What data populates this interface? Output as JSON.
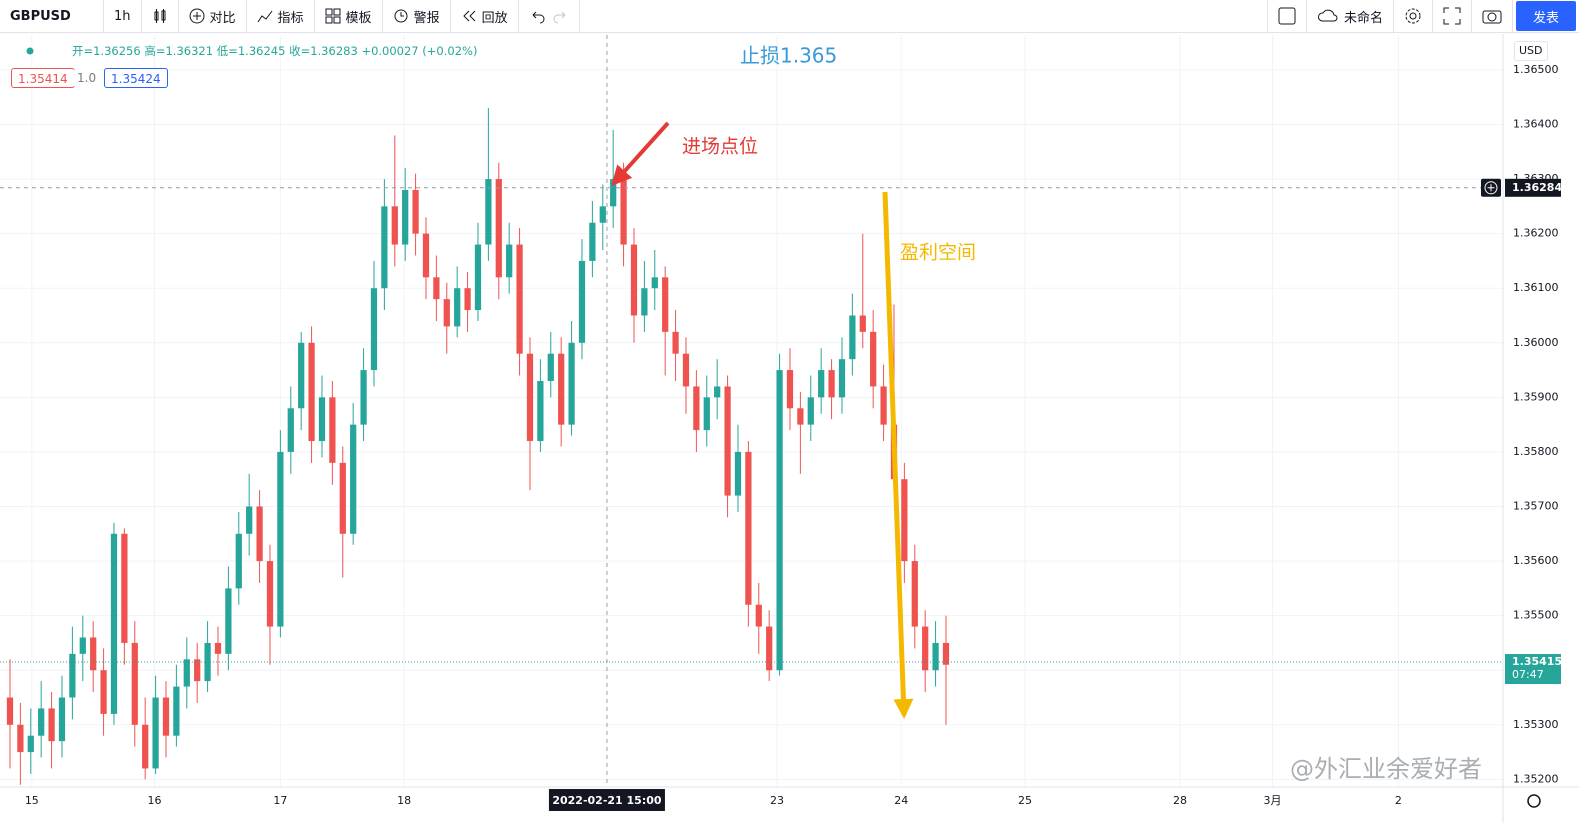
{
  "chart_data": {
    "type": "candlestick",
    "symbol": "GBPUSD",
    "interval": "1h",
    "ohlc_readout": [
      "开=1.36256",
      "高=1.36321",
      "低=1.36245",
      "收=1.36283",
      "+0.00027 (+0.02%)"
    ],
    "bid": "1.35414",
    "spread": "1.0",
    "ask": "1.35424",
    "currency": "USD",
    "annotations": {
      "stop_loss": "止损1.365",
      "entry": "进场点位",
      "profit": "盈利空间"
    },
    "up_color": "#26a69a",
    "down_color": "#ef5350",
    "grid": true,
    "xlim": [
      -0.96,
      143.56
    ],
    "xticks": [
      {
        "value": 2.1,
        "label": "15"
      },
      {
        "value": 13.9,
        "label": "16"
      },
      {
        "value": 26,
        "label": "17"
      },
      {
        "value": 37.9,
        "label": "18"
      },
      {
        "value": 73.75,
        "label": "23"
      },
      {
        "value": 85.7,
        "label": "24"
      },
      {
        "value": 97.6,
        "label": "25"
      },
      {
        "value": 112.5,
        "label": "28"
      },
      {
        "value": 121.4,
        "label": "3月"
      },
      {
        "value": 133.5,
        "label": "2"
      }
    ],
    "ylim": [
      1.35186,
      1.36564
    ],
    "yticks": [
      {
        "value": 1.352,
        "label": "1.35200"
      },
      {
        "value": 1.353,
        "label": "1.35300"
      },
      {
        "value": 1.354,
        "label": "1.35400"
      },
      {
        "value": 1.355,
        "label": "1.35500"
      },
      {
        "value": 1.356,
        "label": "1.35600"
      },
      {
        "value": 1.357,
        "label": "1.35700"
      },
      {
        "value": 1.358,
        "label": "1.35800"
      },
      {
        "value": 1.359,
        "label": "1.35900"
      },
      {
        "value": 1.36,
        "label": "1.36000"
      },
      {
        "value": 1.361,
        "label": "1.36100"
      },
      {
        "value": 1.362,
        "label": "1.36200"
      },
      {
        "value": 1.363,
        "label": "1.36300"
      },
      {
        "value": 1.364,
        "label": "1.36400"
      },
      {
        "value": 1.365,
        "label": "1.36500"
      }
    ],
    "crosshair": {
      "x": {
        "value": 57.4,
        "label": "2022-02-21  15:00"
      },
      "y": {
        "value": 1.36284,
        "label": "1.36284"
      }
    },
    "last_price": {
      "value": 1.35415,
      "label": "1.35415"
    },
    "countdown": "07:47",
    "ohlc": [
      [
        1.3535,
        1.3542,
        1.3522,
        1.353
      ],
      [
        1.353,
        1.3534,
        1.3519,
        1.3525
      ],
      [
        1.3525,
        1.3533,
        1.3521,
        1.3528
      ],
      [
        1.3528,
        1.3538,
        1.3524,
        1.3533
      ],
      [
        1.3533,
        1.3536,
        1.3522,
        1.3527
      ],
      [
        1.3527,
        1.3539,
        1.3524,
        1.3535
      ],
      [
        1.3535,
        1.3548,
        1.3531,
        1.3543
      ],
      [
        1.3543,
        1.355,
        1.3538,
        1.3546
      ],
      [
        1.3546,
        1.3549,
        1.3536,
        1.354
      ],
      [
        1.354,
        1.3544,
        1.3528,
        1.3532
      ],
      [
        1.3532,
        1.3567,
        1.353,
        1.3565
      ],
      [
        1.3565,
        1.3566,
        1.3541,
        1.3545
      ],
      [
        1.3545,
        1.3549,
        1.3526,
        1.353
      ],
      [
        1.353,
        1.3535,
        1.352,
        1.3522
      ],
      [
        1.3522,
        1.3539,
        1.3521,
        1.3535
      ],
      [
        1.3535,
        1.3538,
        1.3524,
        1.3528
      ],
      [
        1.3528,
        1.3541,
        1.3526,
        1.3537
      ],
      [
        1.3537,
        1.3546,
        1.3533,
        1.3542
      ],
      [
        1.3542,
        1.3545,
        1.3534,
        1.3538
      ],
      [
        1.3538,
        1.3549,
        1.3536,
        1.3545
      ],
      [
        1.3545,
        1.3548,
        1.3539,
        1.3543
      ],
      [
        1.3543,
        1.3559,
        1.354,
        1.3555
      ],
      [
        1.3555,
        1.3569,
        1.3552,
        1.3565
      ],
      [
        1.3565,
        1.3576,
        1.3561,
        1.357
      ],
      [
        1.357,
        1.3573,
        1.3556,
        1.356
      ],
      [
        1.356,
        1.3563,
        1.3541,
        1.3548
      ],
      [
        1.3548,
        1.3584,
        1.3546,
        1.358
      ],
      [
        1.358,
        1.3592,
        1.3576,
        1.3588
      ],
      [
        1.3588,
        1.3602,
        1.3584,
        1.36
      ],
      [
        1.36,
        1.3603,
        1.3578,
        1.3582
      ],
      [
        1.3582,
        1.3594,
        1.3579,
        1.359
      ],
      [
        1.359,
        1.3593,
        1.3574,
        1.3578
      ],
      [
        1.3578,
        1.3581,
        1.3557,
        1.3565
      ],
      [
        1.3565,
        1.3589,
        1.3563,
        1.3585
      ],
      [
        1.3585,
        1.3599,
        1.3582,
        1.3595
      ],
      [
        1.3595,
        1.3615,
        1.3592,
        1.361
      ],
      [
        1.361,
        1.363,
        1.3606,
        1.3625
      ],
      [
        1.3625,
        1.3638,
        1.3614,
        1.3618
      ],
      [
        1.3618,
        1.3632,
        1.3615,
        1.3628
      ],
      [
        1.3628,
        1.3631,
        1.3616,
        1.362
      ],
      [
        1.362,
        1.3623,
        1.3608,
        1.3612
      ],
      [
        1.3612,
        1.3616,
        1.3604,
        1.3608
      ],
      [
        1.3608,
        1.3611,
        1.3598,
        1.3603
      ],
      [
        1.3603,
        1.3614,
        1.3601,
        1.361
      ],
      [
        1.361,
        1.3613,
        1.3602,
        1.3606
      ],
      [
        1.3606,
        1.3622,
        1.3604,
        1.3618
      ],
      [
        1.3618,
        1.3643,
        1.3615,
        1.363
      ],
      [
        1.363,
        1.3633,
        1.3608,
        1.3612
      ],
      [
        1.3612,
        1.3622,
        1.3609,
        1.3618
      ],
      [
        1.3618,
        1.3621,
        1.3594,
        1.3598
      ],
      [
        1.3598,
        1.3601,
        1.3573,
        1.3582
      ],
      [
        1.3582,
        1.3597,
        1.358,
        1.3593
      ],
      [
        1.3593,
        1.3602,
        1.359,
        1.3598
      ],
      [
        1.3598,
        1.3601,
        1.3581,
        1.3585
      ],
      [
        1.3585,
        1.3604,
        1.3583,
        1.36
      ],
      [
        1.36,
        1.3619,
        1.3597,
        1.3615
      ],
      [
        1.3615,
        1.3626,
        1.3612,
        1.3622
      ],
      [
        1.3622,
        1.3629,
        1.3617,
        1.3625
      ],
      [
        1.3625,
        1.3639,
        1.3621,
        1.363
      ],
      [
        1.363,
        1.3633,
        1.3614,
        1.3618
      ],
      [
        1.3618,
        1.3621,
        1.36,
        1.3605
      ],
      [
        1.3605,
        1.3615,
        1.3602,
        1.361
      ],
      [
        1.361,
        1.3617,
        1.3606,
        1.3612
      ],
      [
        1.3612,
        1.3614,
        1.3594,
        1.3602
      ],
      [
        1.3602,
        1.3606,
        1.3593,
        1.3598
      ],
      [
        1.3598,
        1.3601,
        1.3587,
        1.3592
      ],
      [
        1.3592,
        1.3595,
        1.358,
        1.3584
      ],
      [
        1.3584,
        1.3594,
        1.3581,
        1.359
      ],
      [
        1.359,
        1.3597,
        1.3586,
        1.3592
      ],
      [
        1.3592,
        1.3594,
        1.3568,
        1.3572
      ],
      [
        1.3572,
        1.3585,
        1.3569,
        1.358
      ],
      [
        1.358,
        1.3582,
        1.3548,
        1.3552
      ],
      [
        1.3552,
        1.3556,
        1.3543,
        1.3548
      ],
      [
        1.3548,
        1.3551,
        1.3538,
        1.354
      ],
      [
        1.354,
        1.3598,
        1.3539,
        1.3595
      ],
      [
        1.3595,
        1.3599,
        1.3584,
        1.3588
      ],
      [
        1.3588,
        1.3591,
        1.3576,
        1.3585
      ],
      [
        1.3585,
        1.3594,
        1.3582,
        1.359
      ],
      [
        1.359,
        1.3599,
        1.3587,
        1.3595
      ],
      [
        1.3595,
        1.3597,
        1.3586,
        1.359
      ],
      [
        1.359,
        1.3601,
        1.3587,
        1.3597
      ],
      [
        1.3597,
        1.3609,
        1.3594,
        1.3605
      ],
      [
        1.3605,
        1.362,
        1.3599,
        1.3602
      ],
      [
        1.3602,
        1.3606,
        1.3588,
        1.3592
      ],
      [
        1.3592,
        1.3596,
        1.3582,
        1.3585
      ],
      [
        1.3585,
        1.3607,
        1.3574,
        1.3575
      ],
      [
        1.3575,
        1.3578,
        1.3556,
        1.356
      ],
      [
        1.356,
        1.3563,
        1.3544,
        1.3548
      ],
      [
        1.3548,
        1.3551,
        1.3536,
        1.354
      ],
      [
        1.354,
        1.3549,
        1.3537,
        1.3545
      ],
      [
        1.3545,
        1.355,
        1.353,
        1.3541
      ]
    ]
  },
  "toolbar": {
    "buttons": [
      "对比",
      "指标",
      "模板",
      "警报",
      "回放"
    ],
    "layout_name": "未命名",
    "publish": "发表"
  },
  "watermark": "@外汇业余爱好者"
}
